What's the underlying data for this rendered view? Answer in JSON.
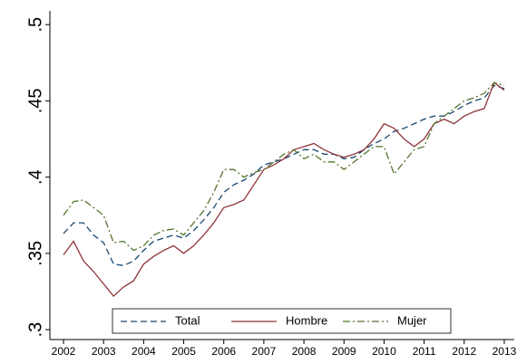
{
  "chart_data": {
    "type": "line",
    "x": [
      2002,
      2002.25,
      2002.5,
      2002.75,
      2003,
      2003.25,
      2003.5,
      2003.75,
      2004,
      2004.25,
      2004.5,
      2004.75,
      2005,
      2005.25,
      2005.5,
      2005.75,
      2006,
      2006.25,
      2006.5,
      2006.75,
      2007,
      2007.25,
      2007.5,
      2007.75,
      2008,
      2008.25,
      2008.5,
      2008.75,
      2009,
      2009.25,
      2009.5,
      2009.75,
      2010,
      2010.25,
      2010.5,
      2010.75,
      2011,
      2011.25,
      2011.5,
      2011.75,
      2012,
      2012.25,
      2012.5,
      2012.75,
      2013
    ],
    "series": [
      {
        "name": "Total",
        "color": "#1a476f",
        "dash": "7,4",
        "values": [
          0.363,
          0.37,
          0.37,
          0.362,
          0.357,
          0.343,
          0.342,
          0.345,
          0.352,
          0.358,
          0.36,
          0.362,
          0.36,
          0.365,
          0.372,
          0.38,
          0.39,
          0.395,
          0.398,
          0.402,
          0.408,
          0.41,
          0.412,
          0.415,
          0.418,
          0.418,
          0.415,
          0.415,
          0.412,
          0.413,
          0.418,
          0.422,
          0.425,
          0.43,
          0.432,
          0.435,
          0.438,
          0.44,
          0.44,
          0.443,
          0.447,
          0.45,
          0.452,
          0.46,
          0.458
        ]
      },
      {
        "name": "Hombre",
        "color": "#90353b",
        "dash": "none",
        "values": [
          0.349,
          0.358,
          0.345,
          0.338,
          0.33,
          0.322,
          0.328,
          0.332,
          0.343,
          0.348,
          0.352,
          0.355,
          0.35,
          0.355,
          0.362,
          0.37,
          0.38,
          0.382,
          0.385,
          0.395,
          0.405,
          0.408,
          0.412,
          0.418,
          0.42,
          0.422,
          0.418,
          0.415,
          0.413,
          0.415,
          0.418,
          0.425,
          0.435,
          0.432,
          0.425,
          0.42,
          0.425,
          0.435,
          0.438,
          0.435,
          0.44,
          0.443,
          0.445,
          0.462,
          0.457
        ]
      },
      {
        "name": "Mujer",
        "color": "#55752f",
        "dash": "8,3,2,3",
        "values": [
          0.375,
          0.384,
          0.385,
          0.38,
          0.375,
          0.357,
          0.358,
          0.352,
          0.355,
          0.362,
          0.365,
          0.366,
          0.362,
          0.37,
          0.378,
          0.39,
          0.405,
          0.405,
          0.4,
          0.403,
          0.405,
          0.41,
          0.415,
          0.418,
          0.412,
          0.415,
          0.41,
          0.41,
          0.405,
          0.41,
          0.415,
          0.42,
          0.42,
          0.402,
          0.41,
          0.418,
          0.42,
          0.435,
          0.44,
          0.445,
          0.45,
          0.452,
          0.455,
          0.462,
          0.46
        ]
      }
    ],
    "xlim": [
      2001.66,
      2013.25
    ],
    "xticks": [
      2002,
      2003,
      2004,
      2005,
      2006,
      2007,
      2008,
      2009,
      2010,
      2011,
      2012,
      2013
    ],
    "ylim": [
      0.2935,
      0.509
    ],
    "yticks": [
      {
        "value": 0.3,
        "label": ".3"
      },
      {
        "value": 0.35,
        "label": ".35"
      },
      {
        "value": 0.4,
        "label": ".4"
      },
      {
        "value": 0.45,
        "label": ".45"
      },
      {
        "value": 0.5,
        "label": ".5"
      }
    ],
    "grid": false
  }
}
